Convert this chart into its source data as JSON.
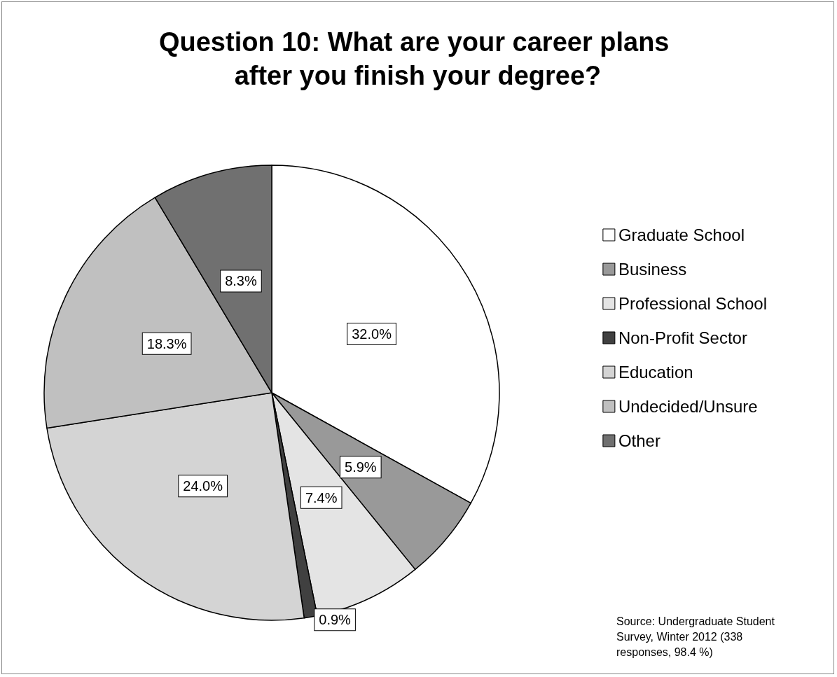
{
  "chart_data": {
    "type": "pie",
    "title": "Question 10: What are your career plans after you finish your degree?",
    "categories": [
      "Graduate School",
      "Business",
      "Professional School",
      "Non-Profit Sector",
      "Education",
      "Undecided/Unsure",
      "Other"
    ],
    "values": [
      32.0,
      5.9,
      7.4,
      0.9,
      24.0,
      18.3,
      8.3
    ],
    "value_labels": [
      "32.0%",
      "5.9%",
      "7.4%",
      "0.9%",
      "24.0%",
      "18.3%",
      "8.3%"
    ],
    "colors": [
      "#ffffff",
      "#999999",
      "#e4e4e4",
      "#404040",
      "#d4d4d4",
      "#c0c0c0",
      "#707070"
    ],
    "legend": "right",
    "annotations": [
      "Source: Undergraduate Student Survey, Winter 2012 (338 responses, 98.4 %)"
    ]
  }
}
